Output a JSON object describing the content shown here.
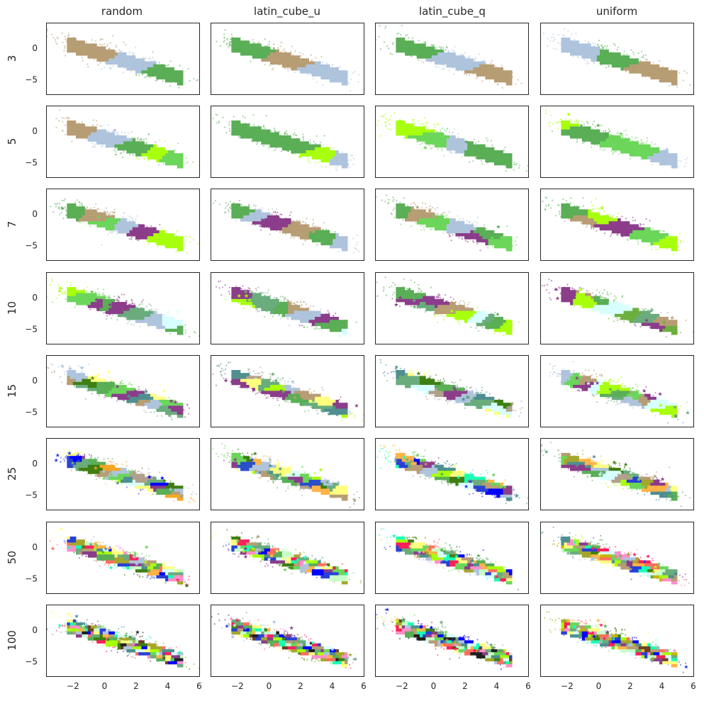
{
  "figure": {
    "columns": [
      "random",
      "latin_cube_u",
      "latin_cube_q",
      "uniform"
    ],
    "rows": [
      "3",
      "5",
      "7",
      "10",
      "15",
      "25",
      "50",
      "100"
    ]
  },
  "chart_data": {
    "type": "scatter",
    "layout": "grid",
    "xlim": [
      -3.7,
      6.0
    ],
    "ylim": [
      -7.3,
      4.0
    ],
    "x_ticks": [
      "−2",
      "0",
      "2",
      "4",
      "6"
    ],
    "y_ticks": [
      "0",
      "−5"
    ],
    "x_tick_values": [
      -2,
      0,
      2,
      4,
      6
    ],
    "y_tick_values": [
      0,
      -5
    ],
    "grid": false,
    "legend": "none",
    "point_cloud": {
      "shape": "elongated band from upper-left to lower-right",
      "center": [
        0.9,
        -1.6
      ],
      "slope": -0.75,
      "x_extent": [
        -3.0,
        5.5
      ]
    },
    "panels": [
      {
        "row": "3",
        "column": "random",
        "clusters": 3,
        "colors": [
          "#b79d74",
          "#aec4dc",
          "#5aae56"
        ]
      },
      {
        "row": "3",
        "column": "latin_cube_u",
        "clusters": 3,
        "colors": [
          "#5aae56",
          "#b79d74",
          "#aec4dc"
        ]
      },
      {
        "row": "3",
        "column": "latin_cube_q",
        "clusters": 3,
        "colors": [
          "#5aae56",
          "#aec4dc",
          "#b79d74"
        ]
      },
      {
        "row": "3",
        "column": "uniform",
        "clusters": 3,
        "colors": [
          "#aec4dc",
          "#5aae56",
          "#b79d74"
        ]
      },
      {
        "row": "5",
        "column": "random",
        "clusters": 5,
        "colors": [
          "#b79d74",
          "#aec4dc",
          "#5aae56",
          "#a8ff0c",
          "#6bd65a"
        ]
      },
      {
        "row": "5",
        "column": "latin_cube_u",
        "clusters": 5,
        "colors": [
          "#5aae56",
          "#5aae56",
          "#5aae56",
          "#a8ff0c",
          "#aec4dc"
        ]
      },
      {
        "row": "5",
        "column": "latin_cube_q",
        "clusters": 5,
        "colors": [
          "#a8ff0c",
          "#6bd65a",
          "#aec4dc",
          "#5aae56",
          "#5aae56"
        ]
      },
      {
        "row": "5",
        "column": "uniform",
        "clusters": 5,
        "colors": [
          "#a8ff0c",
          "#5aae56",
          "#6bd65a",
          "#6bd65a",
          "#aec4dc"
        ]
      },
      {
        "row": "7",
        "column": "random",
        "clusters": 7,
        "colors": [
          "#5aae56",
          "#b79d74",
          "#6bd65a",
          "#aec4dc",
          "#8b3d8a",
          "#a8ff0c",
          "#a8ff0c"
        ]
      },
      {
        "row": "7",
        "column": "latin_cube_u",
        "clusters": 7,
        "colors": [
          "#5aae56",
          "#aec4dc",
          "#8b3d8a",
          "#b79d74",
          "#b79d74",
          "#5aae56",
          "#aec4dc"
        ]
      },
      {
        "row": "7",
        "column": "latin_cube_q",
        "clusters": 7,
        "colors": [
          "#5aae56",
          "#b79d74",
          "#6bd65a",
          "#aec4dc",
          "#8b3d8a",
          "#5aae56",
          "#6bd65a"
        ]
      },
      {
        "row": "7",
        "column": "uniform",
        "clusters": 7,
        "colors": [
          "#5aae56",
          "#b79d74",
          "#a8ff0c",
          "#8b3d8a",
          "#8b3d8a",
          "#6bd65a",
          "#a8ff0c"
        ]
      },
      {
        "row": "10",
        "column": "random",
        "clusters": 10,
        "colors": [
          "#a8ff0c",
          "#6bd65a",
          "#8b3d8a",
          "#5aae56",
          "#8b3d8a",
          "#6aac7c",
          "#aec4dc",
          "#aec4dc",
          "#d8ffff",
          "#5aae56"
        ]
      },
      {
        "row": "10",
        "column": "latin_cube_u",
        "clusters": 10,
        "colors": [
          "#a8ff0c",
          "#8b3d8a",
          "#6aac7c",
          "#6aac7c",
          "#5aae56",
          "#b79d74",
          "#aec4dc",
          "#8b3d8a",
          "#5aae56",
          "#d8ffff"
        ]
      },
      {
        "row": "10",
        "column": "latin_cube_q",
        "clusters": 10,
        "colors": [
          "#8b3d8a",
          "#5aae56",
          "#6aac7c",
          "#8b3d8a",
          "#b79d74",
          "#a8ff0c",
          "#d8ffff",
          "#6aac7c",
          "#5aae56",
          "#a8ff0c"
        ]
      },
      {
        "row": "10",
        "column": "uniform",
        "clusters": 10,
        "colors": [
          "#8b3d8a",
          "#a8ff0c",
          "#b79d74",
          "#5aae56",
          "#d8ffff",
          "#6daf3e",
          "#6aac7c",
          "#8b3d8a",
          "#b79d74",
          "#6daf3e"
        ]
      },
      {
        "row": "15",
        "column": "random",
        "clusters": 15,
        "colors": [
          "#b79d74",
          "#aec4dc",
          "#3f7f12",
          "#6aac7c",
          "#ffff7f",
          "#5aae56",
          "#6bd65a",
          "#8b3d8a",
          "#4f8f8f",
          "#b79d74",
          "#aec4dc",
          "#6aac7c",
          "#ffff7f",
          "#6bd65a",
          "#8b3d8a"
        ]
      },
      {
        "row": "15",
        "column": "latin_cube_u",
        "clusters": 15,
        "colors": [
          "#8b3d8a",
          "#4f8f8f",
          "#b0a08c",
          "#ffff7f",
          "#6aac7c",
          "#a8ff0c",
          "#8b3d8a",
          "#aec4dc",
          "#5aae56",
          "#b79d74",
          "#6aac7c",
          "#ffff7f",
          "#4f8f8f",
          "#a8ff0c",
          "#8b3d8a"
        ]
      },
      {
        "row": "15",
        "column": "latin_cube_q",
        "clusters": 15,
        "colors": [
          "#4f8f8f",
          "#6aac7c",
          "#ffff7f",
          "#d8ffff",
          "#3f7f12",
          "#b0a08c",
          "#5aae56",
          "#8b3d8a",
          "#aec4dc",
          "#4f8f8f",
          "#6aac7c",
          "#ffff7f",
          "#d8ffff",
          "#3f7f12",
          "#b0a08c"
        ]
      },
      {
        "row": "15",
        "column": "uniform",
        "clusters": 15,
        "colors": [
          "#aec4dc",
          "#6bd65a",
          "#b79d74",
          "#8b3d8a",
          "#d8ffff",
          "#a8ff0c",
          "#6aac7c",
          "#5aae56",
          "#aec4dc",
          "#6bd65a",
          "#b79d74",
          "#8b3d8a",
          "#d8ffff",
          "#a8ff0c",
          "#6aac7c"
        ]
      },
      {
        "row": "25",
        "column": "random",
        "clusters": 25,
        "colors": [
          "#2a3fd6",
          "#ffff7f",
          "#6aac7c",
          "#0000ff",
          "#8b3d8a",
          "#5aae56",
          "#3f7f12",
          "#f5a623",
          "#b79d74",
          "#aec4dc",
          "#6bd65a",
          "#a8ff0c",
          "#4f8f8f",
          "#d8ffff",
          "#b0a08c",
          "#2a3fd6",
          "#ffff7f",
          "#6aac7c",
          "#0000ff",
          "#8b3d8a",
          "#5aae56",
          "#3f7f12",
          "#f5a623",
          "#b79d74",
          "#aec4dc"
        ]
      },
      {
        "row": "25",
        "column": "latin_cube_u",
        "clusters": 25,
        "colors": [
          "#8b3d8a",
          "#6bd65a",
          "#2a4fc8",
          "#a8ff0c",
          "#ffb347",
          "#aec4dc",
          "#3f7f12",
          "#6aac7c",
          "#b79d74",
          "#4f8f8f",
          "#ffff7f",
          "#5aae56",
          "#d8ffff",
          "#b0a08c",
          "#8b3d8a",
          "#6bd65a",
          "#2a4fc8",
          "#a8ff0c",
          "#ffb347",
          "#aec4dc",
          "#3f7f12",
          "#6aac7c",
          "#b79d74",
          "#4f8f8f",
          "#ffff7f"
        ]
      },
      {
        "row": "25",
        "column": "latin_cube_q",
        "clusters": 25,
        "colors": [
          "#19ffb5",
          "#6aac7c",
          "#2a3fd6",
          "#b79d74",
          "#ffb347",
          "#0000ff",
          "#6bd65a",
          "#8b3d8a",
          "#aec4dc",
          "#4f8f8f",
          "#a8ff0c",
          "#5aae56",
          "#3f7f12",
          "#ffff7f",
          "#d8ffff",
          "#19ffb5",
          "#6aac7c",
          "#2a3fd6",
          "#b79d74",
          "#ffb347",
          "#0000ff",
          "#6bd65a",
          "#8b3d8a",
          "#aec4dc",
          "#4f8f8f"
        ]
      },
      {
        "row": "25",
        "column": "uniform",
        "clusters": 25,
        "colors": [
          "#6bd65a",
          "#6aac7c",
          "#b79d74",
          "#a6a62c",
          "#8b3d8a",
          "#4f8f8f",
          "#aec4dc",
          "#ffb347",
          "#5aae56",
          "#ffff7f",
          "#3f7f12",
          "#d8ffff",
          "#b0a08c",
          "#a8ff0c",
          "#2a3fd6",
          "#6bd65a",
          "#6aac7c",
          "#b79d74",
          "#a6a62c",
          "#8b3d8a",
          "#4f8f8f",
          "#aec4dc",
          "#ffb347",
          "#5aae56",
          "#ffff7f"
        ]
      },
      {
        "row": "50",
        "column": "random",
        "clusters": 50,
        "colors": [
          "#ff6f61",
          "#ffff7f",
          "#2a3fd6",
          "#19ffb5",
          "#a6a62c",
          "#ff8fc8",
          "#6aac7c",
          "#ff1f5a",
          "#3f7f12",
          "#c8ffc8",
          "#b79d74",
          "#8b3d8a",
          "#aec4dc",
          "#6bd65a",
          "#a8ff0c",
          "#4f8f8f",
          "#ffb347",
          "#0000ff",
          "#5aae56",
          "#d8ffff"
        ]
      },
      {
        "row": "50",
        "column": "latin_cube_u",
        "clusters": 50,
        "colors": [
          "#2a3fd6",
          "#ffff7f",
          "#8b3d8a",
          "#3f7f12",
          "#6bd65a",
          "#ff1f5a",
          "#c8ffc8",
          "#b79d74",
          "#19ffb5",
          "#a6a62c",
          "#ff8fc8",
          "#6aac7c",
          "#aec4dc",
          "#a8ff0c",
          "#4f8f8f",
          "#ffb347",
          "#0000ff",
          "#5aae56",
          "#d8ffff",
          "#ff6f61"
        ]
      },
      {
        "row": "50",
        "column": "latin_cube_q",
        "clusters": 50,
        "colors": [
          "#a8ff0c",
          "#ff1f5a",
          "#2a3fd6",
          "#6aac7c",
          "#19ffb5",
          "#3f7f12",
          "#ffff7f",
          "#0000ff",
          "#b79d74",
          "#6bd65a",
          "#8b3d8a",
          "#aec4dc",
          "#4f8f8f",
          "#ffb347",
          "#a6a62c",
          "#ff8fc8",
          "#c8ffc8",
          "#5aae56",
          "#d8ffff",
          "#ff6f61"
        ]
      },
      {
        "row": "50",
        "column": "uniform",
        "clusters": 50,
        "colors": [
          "#c8b400",
          "#ffff7f",
          "#6bd65a",
          "#c8ffc8",
          "#4f8f8f",
          "#6aac7c",
          "#ff8fc8",
          "#a8ff0c",
          "#b79d74",
          "#8b3d8a",
          "#aec4dc",
          "#2a3fd6",
          "#a6a62c",
          "#ffb347",
          "#19ffb5",
          "#ff1f5a",
          "#5aae56",
          "#3f7f12",
          "#d8ffff",
          "#ff6f61"
        ]
      },
      {
        "row": "100",
        "column": "random",
        "clusters": 100,
        "colors": [
          "#ff1f5a",
          "#19ffb5",
          "#ffff7f",
          "#3f7f12",
          "#2a3fd6",
          "#a6a62c",
          "#ff8fc8",
          "#6aac7c",
          "#c8ffc8",
          "#b79d74",
          "#8b3d8a",
          "#aec4dc",
          "#6bd65a",
          "#a8ff0c",
          "#4f8f8f",
          "#ffb347",
          "#0000ff",
          "#5aae56",
          "#d8ffff",
          "#ff6f61",
          "#6b4226",
          "#202020"
        ]
      },
      {
        "row": "100",
        "column": "latin_cube_u",
        "clusters": 100,
        "colors": [
          "#6b4226",
          "#ffff7f",
          "#19ffb5",
          "#ff8fc8",
          "#3f7f12",
          "#2a3fd6",
          "#a6a62c",
          "#ff1f5a",
          "#6aac7c",
          "#c8ffc8",
          "#b79d74",
          "#8b3d8a",
          "#aec4dc",
          "#6bd65a",
          "#a8ff0c",
          "#4f8f8f",
          "#ffb347",
          "#0000ff",
          "#5aae56",
          "#d8ffff",
          "#ff6f61",
          "#202020"
        ]
      },
      {
        "row": "100",
        "column": "latin_cube_q",
        "clusters": 100,
        "colors": [
          "#ffb347",
          "#2a3fd6",
          "#3f7f12",
          "#a8ff0c",
          "#ff1f5a",
          "#6b4226",
          "#19ffb5",
          "#ffff7f",
          "#ff8fc8",
          "#a6a62c",
          "#6aac7c",
          "#c8ffc8",
          "#b79d74",
          "#8b3d8a",
          "#aec4dc",
          "#6bd65a",
          "#4f8f8f",
          "#0000ff",
          "#5aae56",
          "#d8ffff",
          "#ff6f61",
          "#202020"
        ]
      },
      {
        "row": "100",
        "column": "uniform",
        "clusters": 100,
        "colors": [
          "#c8b400",
          "#ff1f5a",
          "#a8ff0c",
          "#2a3fd6",
          "#ffb347",
          "#ff8fc8",
          "#6bd65a",
          "#19ffb5",
          "#3f7f12",
          "#ffff7f",
          "#a6a62c",
          "#6aac7c",
          "#c8ffc8",
          "#b79d74",
          "#8b3d8a",
          "#aec4dc",
          "#4f8f8f",
          "#0000ff",
          "#5aae56",
          "#d8ffff",
          "#ff6f61",
          "#6b4226"
        ]
      }
    ]
  }
}
